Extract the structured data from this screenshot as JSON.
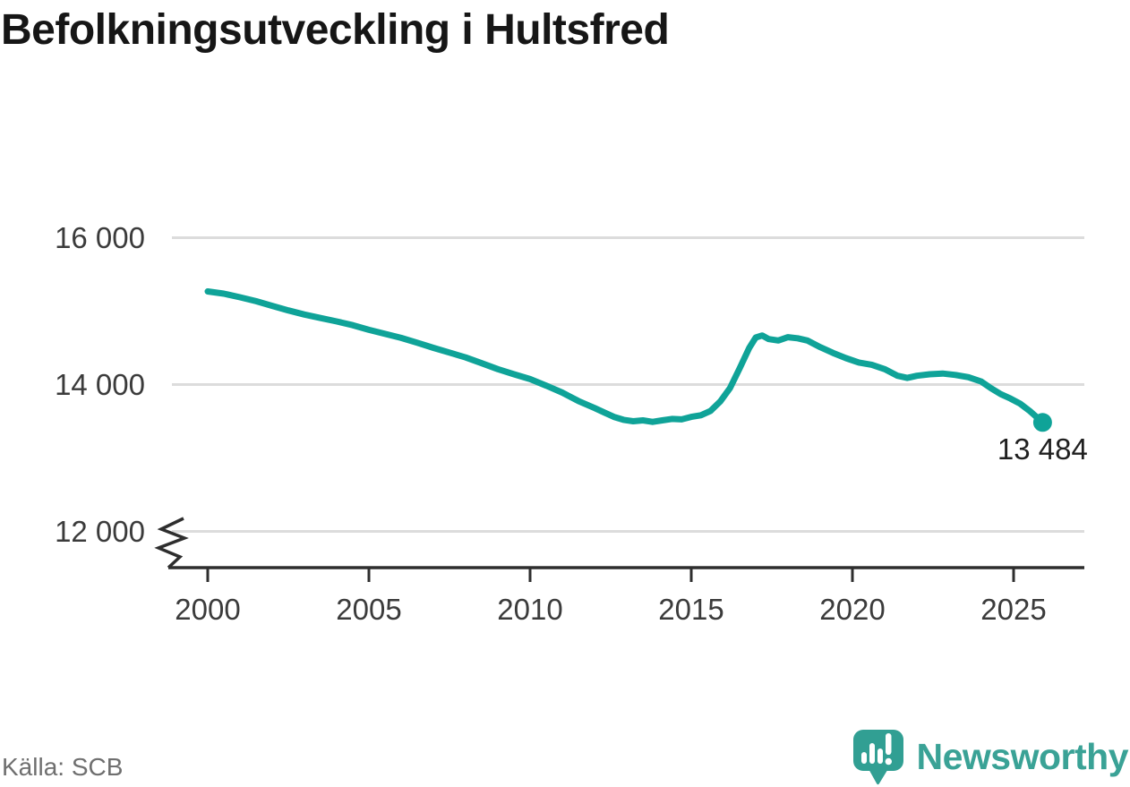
{
  "page": {
    "title": "Befolkningsutveckling i Hultsfred",
    "source": "Källa: SCB"
  },
  "branding": {
    "name": "Newsworthy",
    "icon": "newsworthy-chart-bubble-icon"
  },
  "colors": {
    "line": "#0fa398",
    "grid": "#dcdcdc",
    "axis": "#2e2e2e",
    "tick_text": "#3b3b3b",
    "title": "#161616",
    "source_text": "#6f6f6f",
    "brand": "#3aa296",
    "end_label": "#1f1f1f"
  },
  "chart_data": {
    "type": "line",
    "title": "Befolkningsutveckling i Hultsfred",
    "xlabel": "",
    "ylabel": "",
    "grid": "horizontal",
    "legend": "none",
    "axis_break": true,
    "xlim": [
      1998.8,
      2027.2
    ],
    "ylim": [
      11500,
      16500
    ],
    "x_ticks": [
      {
        "value": 2000,
        "label": "2000"
      },
      {
        "value": 2005,
        "label": "2005"
      },
      {
        "value": 2010,
        "label": "2010"
      },
      {
        "value": 2015,
        "label": "2015"
      },
      {
        "value": 2020,
        "label": "2020"
      },
      {
        "value": 2025,
        "label": "2025"
      }
    ],
    "y_ticks": [
      {
        "value": 16000,
        "label": "16 000"
      },
      {
        "value": 14000,
        "label": "14 000"
      },
      {
        "value": 12000,
        "label": "12 000"
      }
    ],
    "series": [
      {
        "name": "Befolkning",
        "points": [
          [
            2000.0,
            15268
          ],
          [
            2000.5,
            15238
          ],
          [
            2001.0,
            15189
          ],
          [
            2001.5,
            15135
          ],
          [
            2002.0,
            15072
          ],
          [
            2002.5,
            15010
          ],
          [
            2003.0,
            14954
          ],
          [
            2003.5,
            14906
          ],
          [
            2004.0,
            14860
          ],
          [
            2004.5,
            14808
          ],
          [
            2005.0,
            14745
          ],
          [
            2005.5,
            14690
          ],
          [
            2006.0,
            14635
          ],
          [
            2006.5,
            14570
          ],
          [
            2007.0,
            14500
          ],
          [
            2007.5,
            14435
          ],
          [
            2008.0,
            14370
          ],
          [
            2008.5,
            14290
          ],
          [
            2009.0,
            14210
          ],
          [
            2009.5,
            14140
          ],
          [
            2010.0,
            14075
          ],
          [
            2010.5,
            13985
          ],
          [
            2011.0,
            13890
          ],
          [
            2011.5,
            13775
          ],
          [
            2012.0,
            13680
          ],
          [
            2012.3,
            13620
          ],
          [
            2012.6,
            13560
          ],
          [
            2012.9,
            13520
          ],
          [
            2013.2,
            13500
          ],
          [
            2013.5,
            13512
          ],
          [
            2013.8,
            13492
          ],
          [
            2014.1,
            13512
          ],
          [
            2014.4,
            13532
          ],
          [
            2014.7,
            13525
          ],
          [
            2015.0,
            13560
          ],
          [
            2015.3,
            13582
          ],
          [
            2015.6,
            13642
          ],
          [
            2015.9,
            13770
          ],
          [
            2016.2,
            13950
          ],
          [
            2016.5,
            14220
          ],
          [
            2016.8,
            14500
          ],
          [
            2017.0,
            14640
          ],
          [
            2017.2,
            14668
          ],
          [
            2017.4,
            14620
          ],
          [
            2017.7,
            14600
          ],
          [
            2018.0,
            14645
          ],
          [
            2018.3,
            14630
          ],
          [
            2018.6,
            14600
          ],
          [
            2019.0,
            14510
          ],
          [
            2019.4,
            14430
          ],
          [
            2019.8,
            14360
          ],
          [
            2020.2,
            14300
          ],
          [
            2020.6,
            14270
          ],
          [
            2021.0,
            14210
          ],
          [
            2021.4,
            14120
          ],
          [
            2021.7,
            14090
          ],
          [
            2022.0,
            14120
          ],
          [
            2022.4,
            14140
          ],
          [
            2022.8,
            14150
          ],
          [
            2023.2,
            14130
          ],
          [
            2023.6,
            14100
          ],
          [
            2024.0,
            14040
          ],
          [
            2024.3,
            13950
          ],
          [
            2024.6,
            13870
          ],
          [
            2024.9,
            13810
          ],
          [
            2025.2,
            13740
          ],
          [
            2025.5,
            13640
          ],
          [
            2025.9,
            13484
          ]
        ]
      }
    ],
    "end_point": {
      "x": 2025.9,
      "value": 13484,
      "label": "13 484"
    }
  }
}
